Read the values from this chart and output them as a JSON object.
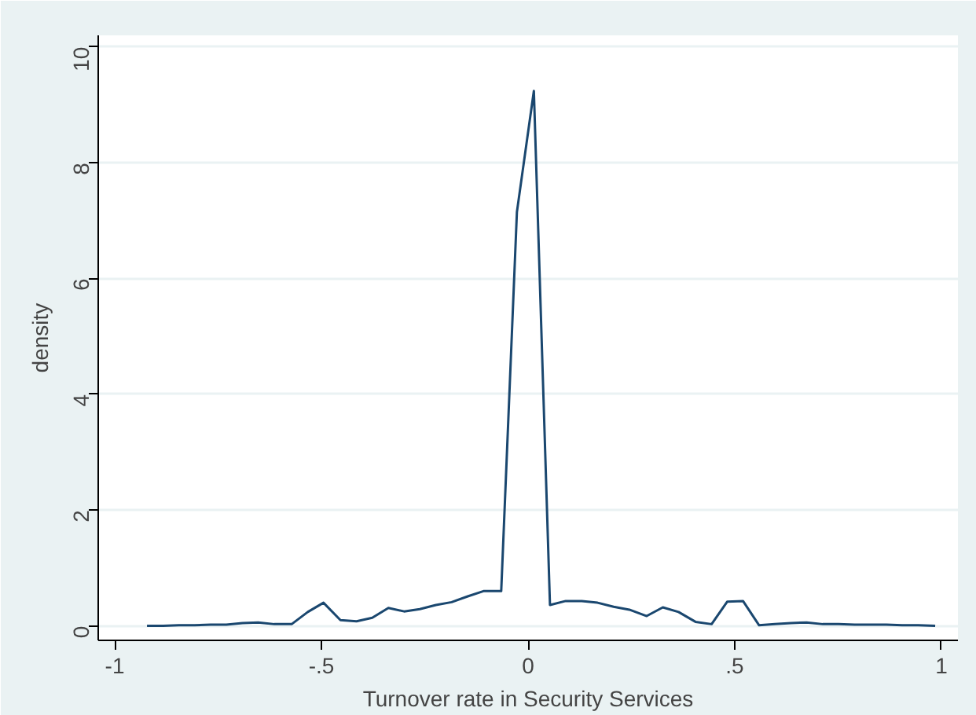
{
  "chart_data": {
    "type": "line",
    "xlabel": "Turnover rate in Security Services",
    "ylabel": "density",
    "x": [
      -0.922,
      -0.883,
      -0.845,
      -0.807,
      -0.768,
      -0.73,
      -0.691,
      -0.653,
      -0.614,
      -0.572,
      -0.533,
      -0.495,
      -0.454,
      -0.415,
      -0.377,
      -0.338,
      -0.3,
      -0.262,
      -0.223,
      -0.185,
      -0.146,
      -0.108,
      -0.065,
      -0.027,
      0.014,
      0.053,
      0.091,
      0.13,
      0.168,
      0.207,
      0.245,
      0.287,
      0.326,
      0.364,
      0.405,
      0.444,
      0.482,
      0.52,
      0.559,
      0.597,
      0.636,
      0.674,
      0.713,
      0.751,
      0.79,
      0.828,
      0.867,
      0.905,
      0.944,
      0.985
    ],
    "series": [
      {
        "color": "#1a476f",
        "values": [
          0,
          0,
          0.01,
          0.01,
          0.02,
          0.02,
          0.05,
          0.06,
          0.03,
          0.03,
          0.24,
          0.4,
          0.1,
          0.08,
          0.14,
          0.31,
          0.25,
          0.29,
          0.36,
          0.41,
          0.51,
          0.6,
          0.6,
          7.15,
          9.24,
          0.36,
          0.43,
          0.43,
          0.4,
          0.33,
          0.28,
          0.17,
          0.32,
          0.24,
          0.07,
          0.03,
          0.42,
          0.43,
          0.01,
          0.03,
          0.05,
          0.06,
          0.03,
          0.03,
          0.02,
          0.02,
          0.02,
          0.01,
          0.01,
          0
        ]
      }
    ],
    "xlim": [
      -1.04,
      1.04
    ],
    "ylim": [
      -0.25,
      10.2
    ],
    "xticks": [
      {
        "value": -1,
        "label": "-1"
      },
      {
        "value": -0.5,
        "label": "-.5"
      },
      0,
      {
        "value": 0.5,
        "label": ".5"
      },
      1
    ],
    "yticks": [
      0,
      2,
      4,
      6,
      8,
      10
    ],
    "grid": "y",
    "marker": "none",
    "line_style": "solid"
  }
}
